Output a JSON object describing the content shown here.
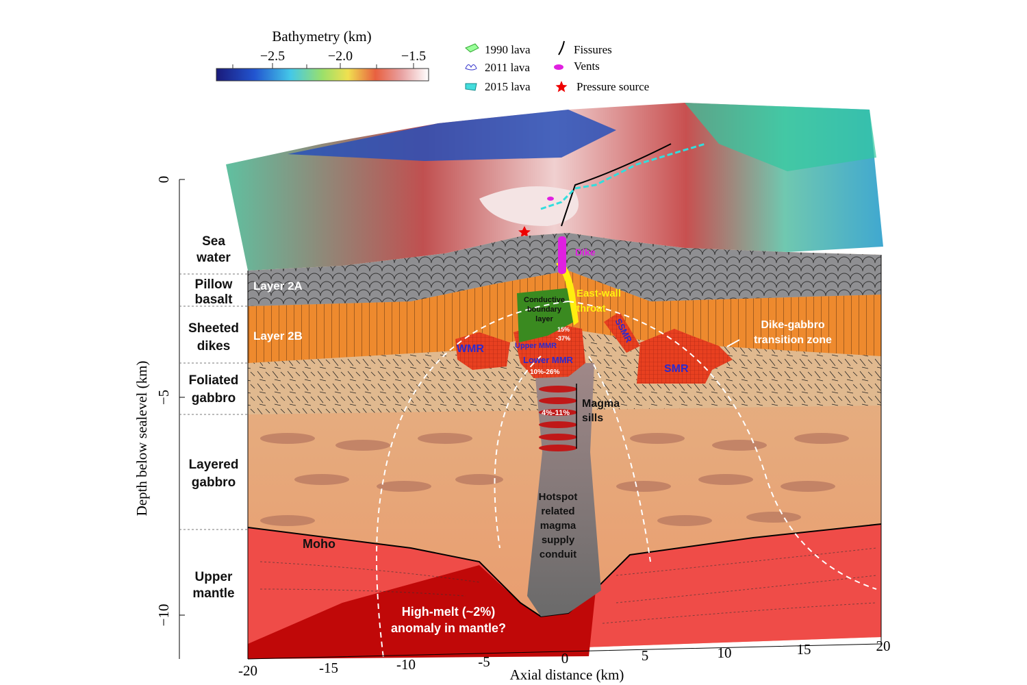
{
  "colorbar": {
    "title": "Bathymetry (km)",
    "tick_labels": [
      "−2.5",
      "−2.0",
      "−1.5"
    ]
  },
  "legend": {
    "items": [
      "1990 lava",
      "2011 lava",
      "2015 lava",
      "Fissures",
      "Vents",
      "Pressure source"
    ]
  },
  "y_axis": {
    "label": "Depth below sealevel  (km)",
    "tick_labels": [
      "0",
      "−5",
      "−10"
    ]
  },
  "x_axis": {
    "label": "Axial distance (km)",
    "tick_labels": [
      "-20",
      "-15",
      "-10",
      "-5",
      "0",
      "5",
      "10",
      "15",
      "20"
    ]
  },
  "units": [
    {
      "lines": [
        "Sea",
        "water"
      ]
    },
    {
      "lines": [
        "Pillow",
        "basalt"
      ]
    },
    {
      "lines": [
        "Sheeted",
        "dikes"
      ]
    },
    {
      "lines": [
        "Foliated",
        "gabbro"
      ]
    },
    {
      "lines": [
        "Layered",
        "gabbro"
      ]
    },
    {
      "lines": [
        "Upper",
        "mantle"
      ]
    }
  ],
  "annotations": {
    "layer_2a": "Layer 2A",
    "layer_2b": "Layer 2B",
    "dike": "Dike",
    "east_wall": [
      "East-wall",
      "throat"
    ],
    "conductive": [
      "Conductive",
      "boundary",
      "layer"
    ],
    "wmr": "WMR",
    "ssmr": "SSMR",
    "smr": "SMR",
    "upper_mmr": "Upper MMR",
    "lower_mmr": "Lower MMR",
    "upper_melt": [
      "15%",
      "-37%"
    ],
    "lower_melt": "10%-26%",
    "sill_melt": "4%-11%",
    "sills": [
      "Magma",
      "sills"
    ],
    "conduit": [
      "Hotspot",
      "related",
      "magma",
      "supply",
      "conduit"
    ],
    "transition": [
      "Dike-gabbro",
      "transition zone"
    ],
    "moho": "Moho",
    "anomaly": [
      "High-melt (~2%)",
      "anomaly in mantle?"
    ]
  }
}
